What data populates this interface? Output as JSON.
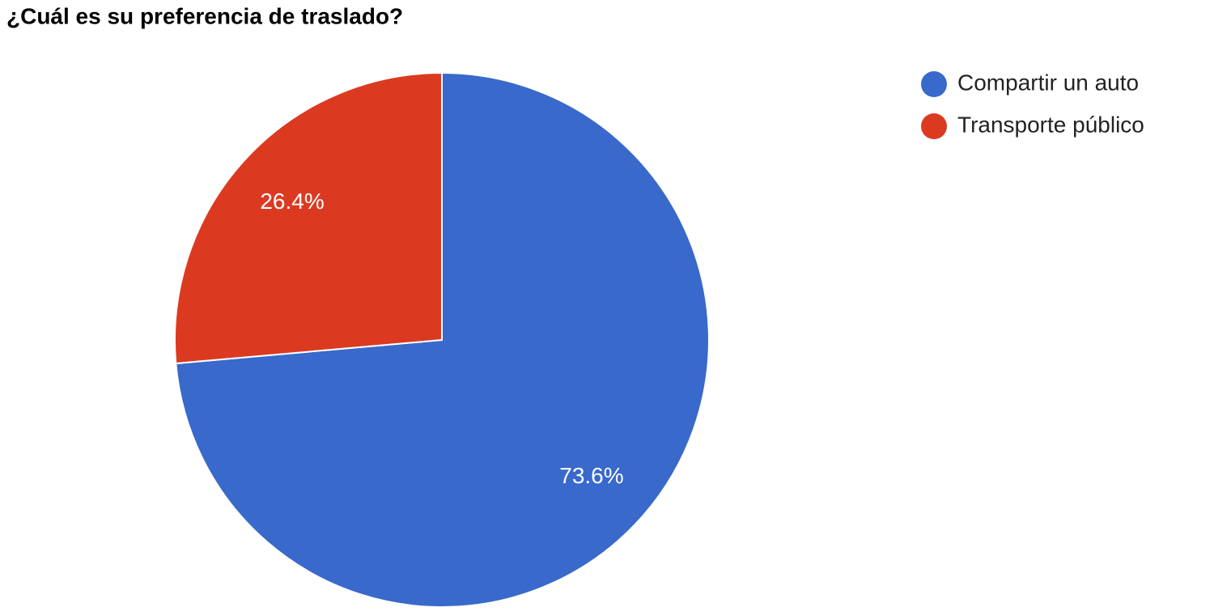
{
  "chart_data": {
    "type": "pie",
    "title": "¿Cuál es su preferencia de traslado?",
    "categories": [
      "Compartir un auto",
      "Transporte público"
    ],
    "values": [
      73.6,
      26.4
    ],
    "value_labels": [
      "73.6%",
      "26.4%"
    ],
    "colors": [
      "#3869cb",
      "#db3a21"
    ],
    "legend": "right"
  }
}
